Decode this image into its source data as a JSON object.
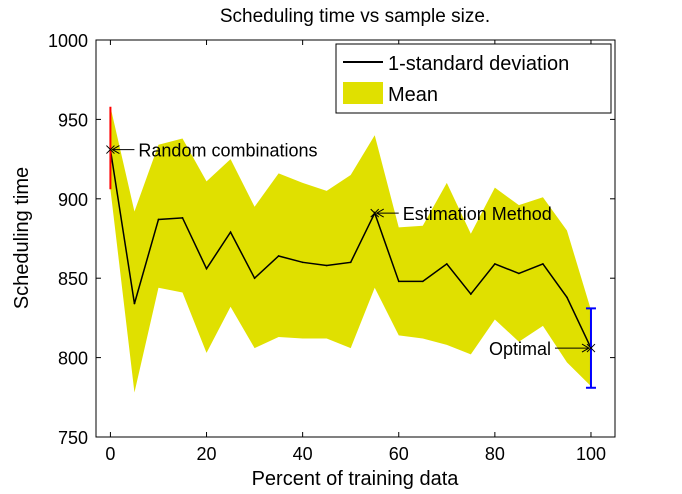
{
  "chart_data": {
    "type": "area",
    "title": "Scheduling time vs sample size.",
    "xlabel": "Percent of training data",
    "ylabel": "Scheduling time",
    "xlim": [
      -3,
      105
    ],
    "ylim": [
      750,
      1000
    ],
    "xticks": [
      0,
      20,
      40,
      60,
      80,
      100
    ],
    "yticks": [
      750,
      800,
      850,
      900,
      950,
      1000
    ],
    "grid": false,
    "legend_position": "top-right",
    "x": [
      0,
      5,
      10,
      15,
      20,
      25,
      30,
      35,
      40,
      45,
      50,
      55,
      60,
      65,
      70,
      75,
      80,
      85,
      90,
      95,
      100
    ],
    "series": [
      {
        "name": "1-standard deviation",
        "color": "#000000",
        "values": [
          931,
          834,
          887,
          888,
          856,
          879,
          850,
          864,
          860,
          858,
          860,
          891,
          848,
          848,
          859,
          840,
          859,
          853,
          859,
          838,
          806
        ]
      },
      {
        "name": "Mean",
        "color": "#e0e000",
        "upper": [
          958,
          892,
          934,
          938,
          911,
          925,
          895,
          916,
          910,
          905,
          915,
          940,
          882,
          883,
          910,
          878,
          907,
          896,
          901,
          880,
          830
        ],
        "lower": [
          906,
          778,
          844,
          841,
          803,
          832,
          806,
          813,
          812,
          812,
          806,
          844,
          814,
          812,
          808,
          802,
          824,
          810,
          820,
          797,
          782
        ]
      }
    ],
    "markers": [
      {
        "x": 0,
        "low": 906,
        "high": 958,
        "color": "#ff0000"
      },
      {
        "x": 100,
        "low": 781,
        "high": 831,
        "color": "#0000ff"
      }
    ],
    "annotations": [
      {
        "text": "Random combinations",
        "x": 0,
        "y": 931
      },
      {
        "text": "Estimation Method",
        "x": 55,
        "y": 891
      },
      {
        "text": "Optimal",
        "x": 100,
        "y": 806
      }
    ]
  }
}
